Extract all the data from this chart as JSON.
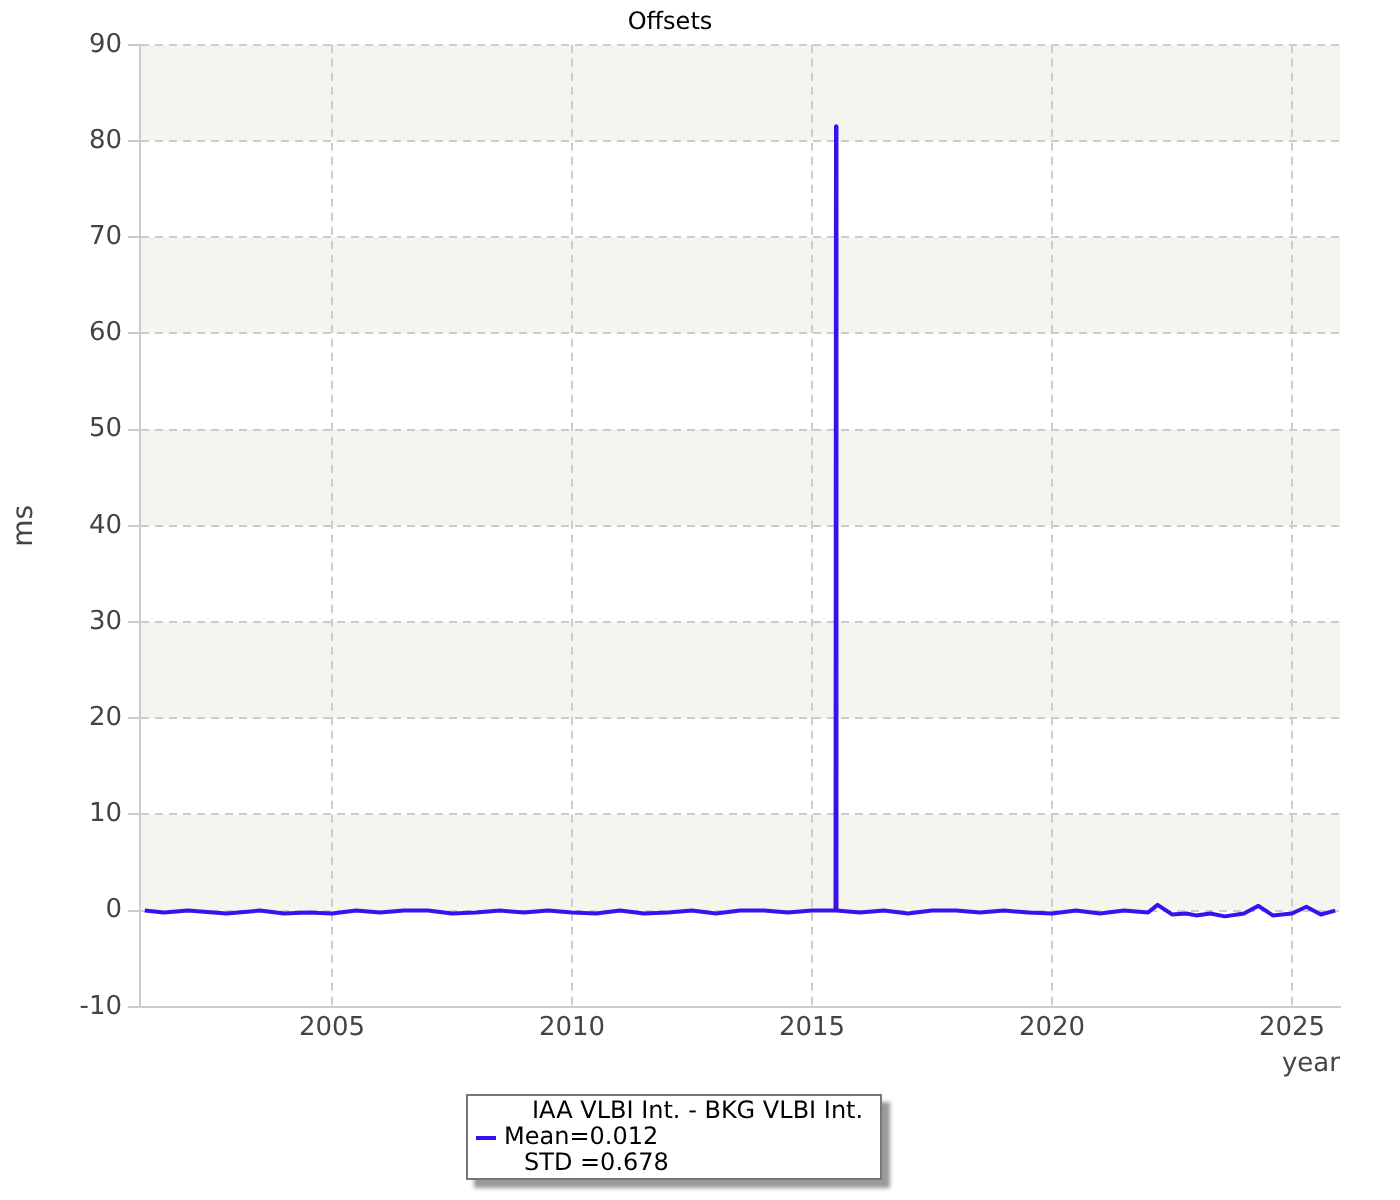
{
  "chart_data": {
    "type": "line",
    "title": "Offsets",
    "xlabel": "year",
    "ylabel": "ms",
    "xlim": [
      2001,
      2026
    ],
    "xticks": [
      2005,
      2010,
      2015,
      2020,
      2025
    ],
    "ylim": [
      -10,
      90
    ],
    "yticks": [
      -10,
      0,
      10,
      20,
      30,
      40,
      50,
      60,
      70,
      80,
      90
    ],
    "grid": true,
    "legend": "bottom",
    "marker": "none",
    "line_style": "solid",
    "annotations": [
      "Mean=0.012",
      "STD =0.678"
    ],
    "series": [
      {
        "name": "IAA VLBI Int. - BKG VLBI Int.",
        "color": "#3a10f0",
        "x": [
          2001.1,
          2001.5,
          2002,
          2002.8,
          2003.5,
          2004,
          2004.5,
          2005,
          2005.5,
          2006,
          2006.5,
          2007,
          2007.5,
          2008,
          2008.5,
          2009,
          2009.5,
          2010,
          2010.5,
          2011,
          2011.5,
          2012,
          2012.5,
          2013,
          2013.5,
          2014,
          2014.5,
          2015,
          2015.49,
          2015.5,
          2015.51,
          2016,
          2016.5,
          2017,
          2017.5,
          2018,
          2018.5,
          2019,
          2019.5,
          2020,
          2020.5,
          2021,
          2021.5,
          2022,
          2022.2,
          2022.5,
          2022.8,
          2023,
          2023.3,
          2023.6,
          2024,
          2024.3,
          2024.6,
          2025,
          2025.3,
          2025.6,
          2025.9
        ],
        "values": [
          0,
          -0.2,
          0,
          -0.3,
          0,
          -0.3,
          -0.2,
          -0.3,
          0,
          -0.2,
          0,
          0,
          -0.3,
          -0.2,
          0,
          -0.2,
          0,
          -0.2,
          -0.3,
          0,
          -0.3,
          -0.2,
          0,
          -0.3,
          0,
          0,
          -0.2,
          0,
          0,
          81.5,
          0,
          -0.2,
          0,
          -0.3,
          0,
          0,
          -0.2,
          0,
          -0.2,
          -0.3,
          0,
          -0.3,
          0,
          -0.2,
          0.6,
          -0.4,
          -0.3,
          -0.5,
          -0.3,
          -0.6,
          -0.3,
          0.5,
          -0.5,
          -0.3,
          0.4,
          -0.4,
          0
        ]
      }
    ]
  }
}
